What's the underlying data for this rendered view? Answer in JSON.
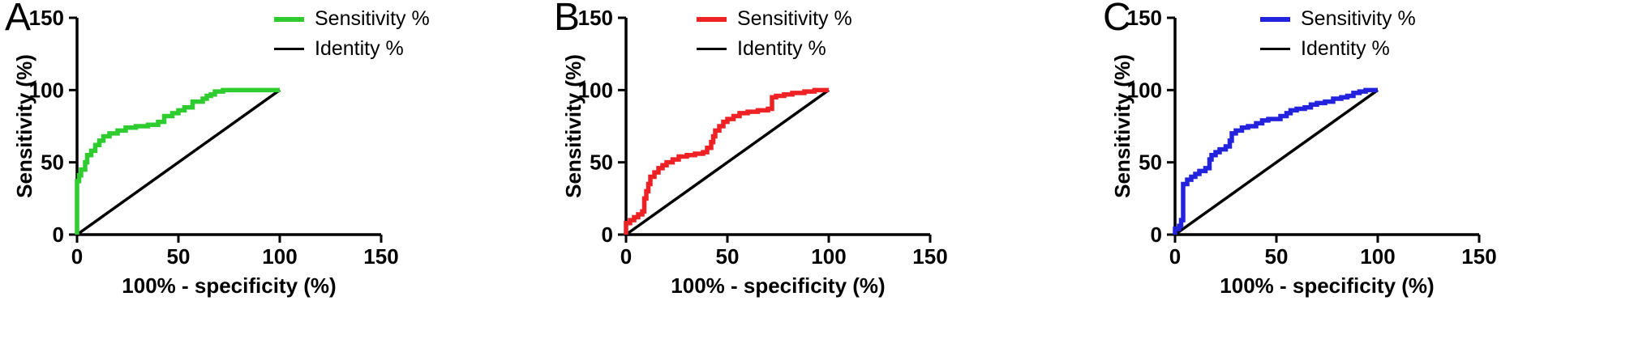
{
  "figure": {
    "xlabel": "100% - specificity (%)",
    "ylabel": "Sensitivity (%)",
    "panels": [
      {
        "label": "A",
        "series_color": "#2ecc2e",
        "identity_color": "#000000",
        "legend": [
          {
            "label": "Sensitivity %",
            "color": "#2ecc2e"
          },
          {
            "label": "Identity %",
            "color": "#000000"
          }
        ]
      },
      {
        "label": "B",
        "series_color": "#ee2224",
        "identity_color": "#000000",
        "legend": [
          {
            "label": "Sensitivity %",
            "color": "#ee2224"
          },
          {
            "label": "Identity %",
            "color": "#000000"
          }
        ]
      },
      {
        "label": "C",
        "series_color": "#2323dd",
        "identity_color": "#000000",
        "legend": [
          {
            "label": "Sensitivity %",
            "color": "#2323dd"
          },
          {
            "label": "Identity %",
            "color": "#000000"
          }
        ]
      }
    ]
  },
  "chart_data": [
    {
      "type": "line",
      "title": "A",
      "xlabel": "100% - specificity (%)",
      "ylabel": "Sensitivity (%)",
      "xlim": [
        0,
        150
      ],
      "ylim": [
        0,
        150
      ],
      "xticks": [
        0,
        50,
        100,
        150
      ],
      "yticks": [
        0,
        50,
        100,
        150
      ],
      "grid": false,
      "legend_position": "top-right",
      "series": [
        {
          "name": "Sensitivity %",
          "color": "#2ecc2e",
          "style": "step",
          "points": [
            [
              0,
              0
            ],
            [
              0,
              37
            ],
            [
              1,
              37
            ],
            [
              1,
              41
            ],
            [
              2,
              41
            ],
            [
              2,
              45
            ],
            [
              4,
              45
            ],
            [
              4,
              50
            ],
            [
              5,
              50
            ],
            [
              5,
              55
            ],
            [
              7,
              55
            ],
            [
              7,
              58
            ],
            [
              9,
              58
            ],
            [
              9,
              62
            ],
            [
              11,
              62
            ],
            [
              11,
              65
            ],
            [
              13,
              65
            ],
            [
              13,
              68
            ],
            [
              16,
              68
            ],
            [
              16,
              70
            ],
            [
              20,
              70
            ],
            [
              20,
              72
            ],
            [
              24,
              72
            ],
            [
              24,
              74
            ],
            [
              29,
              74
            ],
            [
              29,
              75
            ],
            [
              35,
              75
            ],
            [
              35,
              76
            ],
            [
              40,
              76
            ],
            [
              40,
              78
            ],
            [
              43,
              78
            ],
            [
              43,
              82
            ],
            [
              47,
              82
            ],
            [
              47,
              84
            ],
            [
              50,
              84
            ],
            [
              50,
              86
            ],
            [
              53,
              86
            ],
            [
              53,
              88
            ],
            [
              57,
              88
            ],
            [
              57,
              92
            ],
            [
              62,
              92
            ],
            [
              62,
              94
            ],
            [
              64,
              94
            ],
            [
              64,
              96
            ],
            [
              66,
              96
            ],
            [
              66,
              97
            ],
            [
              68,
              97
            ],
            [
              68,
              99
            ],
            [
              72,
              99
            ],
            [
              72,
              100
            ],
            [
              100,
              100
            ]
          ]
        },
        {
          "name": "Identity %",
          "color": "#000000",
          "style": "line",
          "points": [
            [
              0,
              0
            ],
            [
              100,
              100
            ]
          ]
        }
      ]
    },
    {
      "type": "line",
      "title": "B",
      "xlabel": "100% - specificity (%)",
      "ylabel": "Sensitivity (%)",
      "xlim": [
        0,
        150
      ],
      "ylim": [
        0,
        150
      ],
      "xticks": [
        0,
        50,
        100,
        150
      ],
      "yticks": [
        0,
        50,
        100,
        150
      ],
      "grid": false,
      "legend_position": "top-left",
      "series": [
        {
          "name": "Sensitivity %",
          "color": "#ee2224",
          "style": "step",
          "points": [
            [
              0,
              0
            ],
            [
              0,
              8
            ],
            [
              2,
              8
            ],
            [
              2,
              10
            ],
            [
              4,
              10
            ],
            [
              4,
              12
            ],
            [
              6,
              12
            ],
            [
              6,
              14
            ],
            [
              8,
              14
            ],
            [
              8,
              16
            ],
            [
              9,
              16
            ],
            [
              9,
              25
            ],
            [
              10,
              25
            ],
            [
              10,
              30
            ],
            [
              11,
              30
            ],
            [
              11,
              35
            ],
            [
              12,
              35
            ],
            [
              12,
              40
            ],
            [
              14,
              40
            ],
            [
              14,
              43
            ],
            [
              16,
              43
            ],
            [
              16,
              46
            ],
            [
              18,
              46
            ],
            [
              18,
              48
            ],
            [
              20,
              48
            ],
            [
              20,
              50
            ],
            [
              23,
              50
            ],
            [
              23,
              52
            ],
            [
              26,
              52
            ],
            [
              26,
              54
            ],
            [
              30,
              54
            ],
            [
              30,
              55
            ],
            [
              34,
              55
            ],
            [
              34,
              56
            ],
            [
              38,
              56
            ],
            [
              38,
              57
            ],
            [
              40,
              57
            ],
            [
              40,
              60
            ],
            [
              42,
              60
            ],
            [
              42,
              64
            ],
            [
              43,
              64
            ],
            [
              43,
              68
            ],
            [
              44,
              68
            ],
            [
              44,
              72
            ],
            [
              46,
              72
            ],
            [
              46,
              75
            ],
            [
              48,
              75
            ],
            [
              48,
              78
            ],
            [
              50,
              78
            ],
            [
              50,
              80
            ],
            [
              53,
              80
            ],
            [
              53,
              82
            ],
            [
              56,
              82
            ],
            [
              56,
              84
            ],
            [
              60,
              84
            ],
            [
              60,
              85
            ],
            [
              65,
              85
            ],
            [
              65,
              86
            ],
            [
              70,
              86
            ],
            [
              70,
              87
            ],
            [
              72,
              87
            ],
            [
              72,
              95
            ],
            [
              74,
              95
            ],
            [
              74,
              96
            ],
            [
              78,
              96
            ],
            [
              78,
              97
            ],
            [
              82,
              97
            ],
            [
              82,
              98
            ],
            [
              88,
              98
            ],
            [
              88,
              99
            ],
            [
              93,
              99
            ],
            [
              93,
              100
            ],
            [
              100,
              100
            ]
          ]
        },
        {
          "name": "Identity %",
          "color": "#000000",
          "style": "line",
          "points": [
            [
              0,
              0
            ],
            [
              100,
              100
            ]
          ]
        }
      ]
    },
    {
      "type": "line",
      "title": "C",
      "xlabel": "100% - specificity (%)",
      "ylabel": "Sensitivity (%)",
      "xlim": [
        0,
        150
      ],
      "ylim": [
        0,
        150
      ],
      "xticks": [
        0,
        50,
        100,
        150
      ],
      "yticks": [
        0,
        50,
        100,
        150
      ],
      "grid": false,
      "legend_position": "top-left",
      "series": [
        {
          "name": "Sensitivity %",
          "color": "#2323dd",
          "style": "step",
          "points": [
            [
              0,
              0
            ],
            [
              0,
              4
            ],
            [
              2,
              4
            ],
            [
              2,
              6
            ],
            [
              3,
              6
            ],
            [
              3,
              10
            ],
            [
              4,
              10
            ],
            [
              4,
              35
            ],
            [
              6,
              35
            ],
            [
              6,
              38
            ],
            [
              8,
              38
            ],
            [
              8,
              40
            ],
            [
              10,
              40
            ],
            [
              10,
              42
            ],
            [
              12,
              42
            ],
            [
              12,
              44
            ],
            [
              15,
              44
            ],
            [
              15,
              46
            ],
            [
              17,
              46
            ],
            [
              17,
              52
            ],
            [
              18,
              52
            ],
            [
              18,
              55
            ],
            [
              20,
              55
            ],
            [
              20,
              57
            ],
            [
              22,
              57
            ],
            [
              22,
              59
            ],
            [
              25,
              59
            ],
            [
              25,
              61
            ],
            [
              27,
              61
            ],
            [
              27,
              65
            ],
            [
              28,
              65
            ],
            [
              28,
              70
            ],
            [
              30,
              70
            ],
            [
              30,
              72
            ],
            [
              33,
              72
            ],
            [
              33,
              74
            ],
            [
              36,
              74
            ],
            [
              36,
              75
            ],
            [
              40,
              75
            ],
            [
              40,
              77
            ],
            [
              43,
              77
            ],
            [
              43,
              79
            ],
            [
              46,
              79
            ],
            [
              46,
              80
            ],
            [
              52,
              80
            ],
            [
              52,
              82
            ],
            [
              55,
              82
            ],
            [
              55,
              84
            ],
            [
              57,
              84
            ],
            [
              57,
              86
            ],
            [
              60,
              86
            ],
            [
              60,
              87
            ],
            [
              64,
              87
            ],
            [
              64,
              88
            ],
            [
              67,
              88
            ],
            [
              67,
              90
            ],
            [
              70,
              90
            ],
            [
              70,
              91
            ],
            [
              74,
              91
            ],
            [
              74,
              92
            ],
            [
              78,
              92
            ],
            [
              78,
              94
            ],
            [
              82,
              94
            ],
            [
              82,
              95
            ],
            [
              85,
              95
            ],
            [
              85,
              96
            ],
            [
              88,
              96
            ],
            [
              88,
              98
            ],
            [
              91,
              98
            ],
            [
              91,
              99
            ],
            [
              94,
              99
            ],
            [
              94,
              100
            ],
            [
              100,
              100
            ]
          ]
        },
        {
          "name": "Identity %",
          "color": "#000000",
          "style": "line",
          "points": [
            [
              0,
              0
            ],
            [
              100,
              100
            ]
          ]
        }
      ]
    }
  ]
}
